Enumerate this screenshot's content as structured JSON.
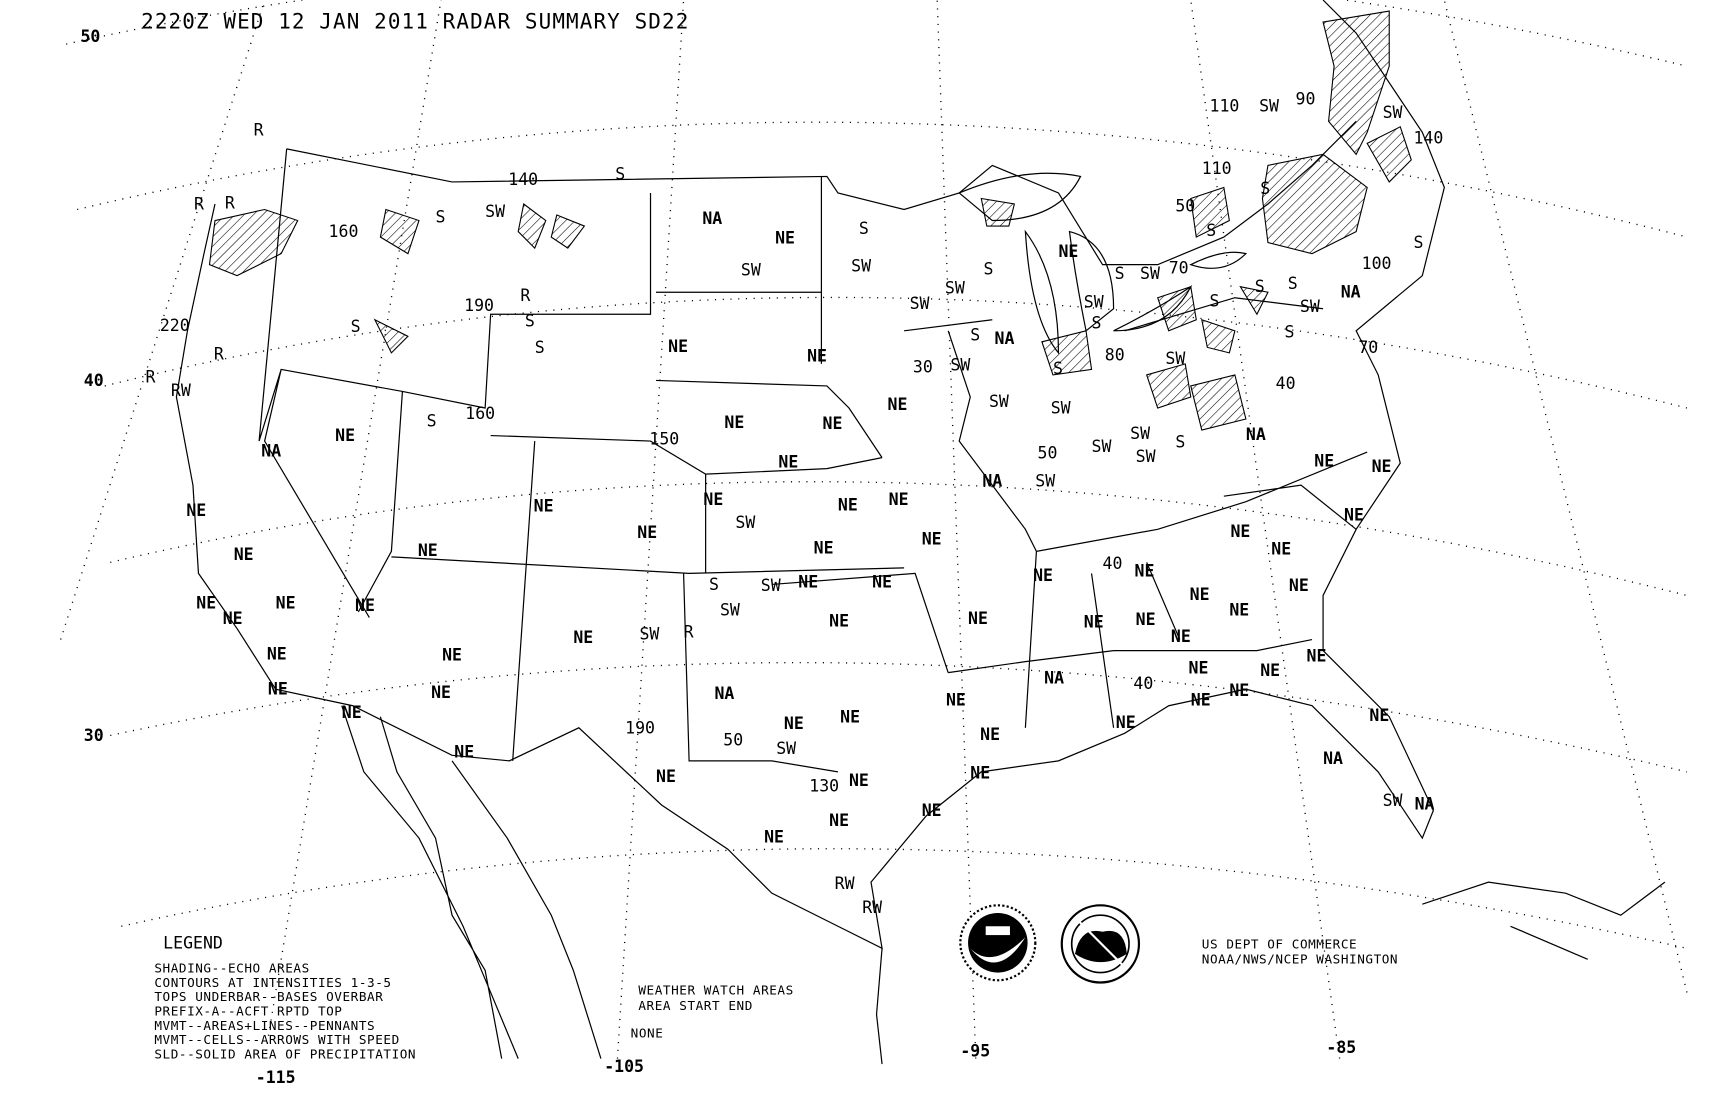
{
  "title": "2220Z WED 12 JAN 2011 RADAR SUMMARY SD22",
  "latitude_labels": [
    "50",
    "40",
    "30"
  ],
  "longitude_labels": [
    "-115",
    "-105",
    "-95",
    "-85"
  ],
  "legend": {
    "heading": "LEGEND",
    "lines": [
      "SHADING--ECHO AREAS",
      "CONTOURS AT INTENSITIES 1-3-5",
      "TOPS UNDERBAR--BASES OVERBAR",
      "PREFIX-A--ACFT RPTD TOP",
      "MVMT--AREAS+LINES--PENNANTS",
      "MVMT--CELLS--ARROWS WITH SPEED",
      "SLD--SOLID AREA OF PRECIPITATION"
    ]
  },
  "watch": {
    "heading": "WEATHER WATCH AREAS",
    "columns": "AREA   START  END",
    "value": "NONE"
  },
  "credits": [
    "US DEPT OF COMMERCE",
    "NOAA/NWS/NCEP WASHINGTON"
  ],
  "logos": [
    "NOAA",
    "NATIONAL WEATHER SERVICE"
  ],
  "map_labels": [
    "NA",
    "NE",
    "SW",
    "NE",
    "NE",
    "NE",
    "NE",
    "NE",
    "NE",
    "NE",
    "NE",
    "NE",
    "NE",
    "SW",
    "NE",
    "NE",
    "NE",
    "NE",
    "NE",
    "NE",
    "NE",
    "NE",
    "NE",
    "NE",
    "NE",
    "NE",
    "NE",
    "NA",
    "NE",
    "SW",
    "50",
    "130",
    "190",
    "NE",
    "SW",
    "R",
    "SW",
    "S",
    "SW",
    "NE",
    "NE",
    "NE",
    "NE",
    "NA",
    "NE",
    "NE",
    "NE",
    "NE",
    "NE",
    "NE",
    "NE",
    "NE",
    "NE",
    "NE",
    "NE",
    "NE",
    "NE",
    "150",
    "160",
    "S",
    "160",
    "190",
    "140",
    "S",
    "S",
    "SW",
    "R",
    "S",
    "S",
    "S",
    "220",
    "R",
    "R",
    "RW",
    "R",
    "R",
    "R",
    "NE",
    "S",
    "SW",
    "SW",
    "SW",
    "S",
    "S",
    "NA",
    "SW",
    "30",
    "SW",
    "S",
    "S",
    "SW",
    "70",
    "S",
    "SW",
    "80",
    "SW",
    "SW",
    "SW",
    "SW",
    "SW",
    "S",
    "50",
    "SW",
    "NA",
    "NA",
    "NE",
    "NE",
    "NE",
    "NE",
    "NE",
    "NE",
    "NE",
    "NE",
    "NE",
    "40",
    "NE",
    "NE",
    "NE",
    "NE",
    "NE",
    "NE",
    "NE",
    "NE",
    "40",
    "NE",
    "NE",
    "NA",
    "NE",
    "NA",
    "SW",
    "NA",
    "110",
    "SW",
    "90",
    "SW",
    "140",
    "110",
    "50",
    "S",
    "S",
    "S",
    "S",
    "S",
    "SW",
    "NA",
    "70",
    "S",
    "100",
    "40",
    "S",
    "RW",
    "RW"
  ],
  "colors": {
    "ink": "#000000",
    "background": "#ffffff"
  }
}
